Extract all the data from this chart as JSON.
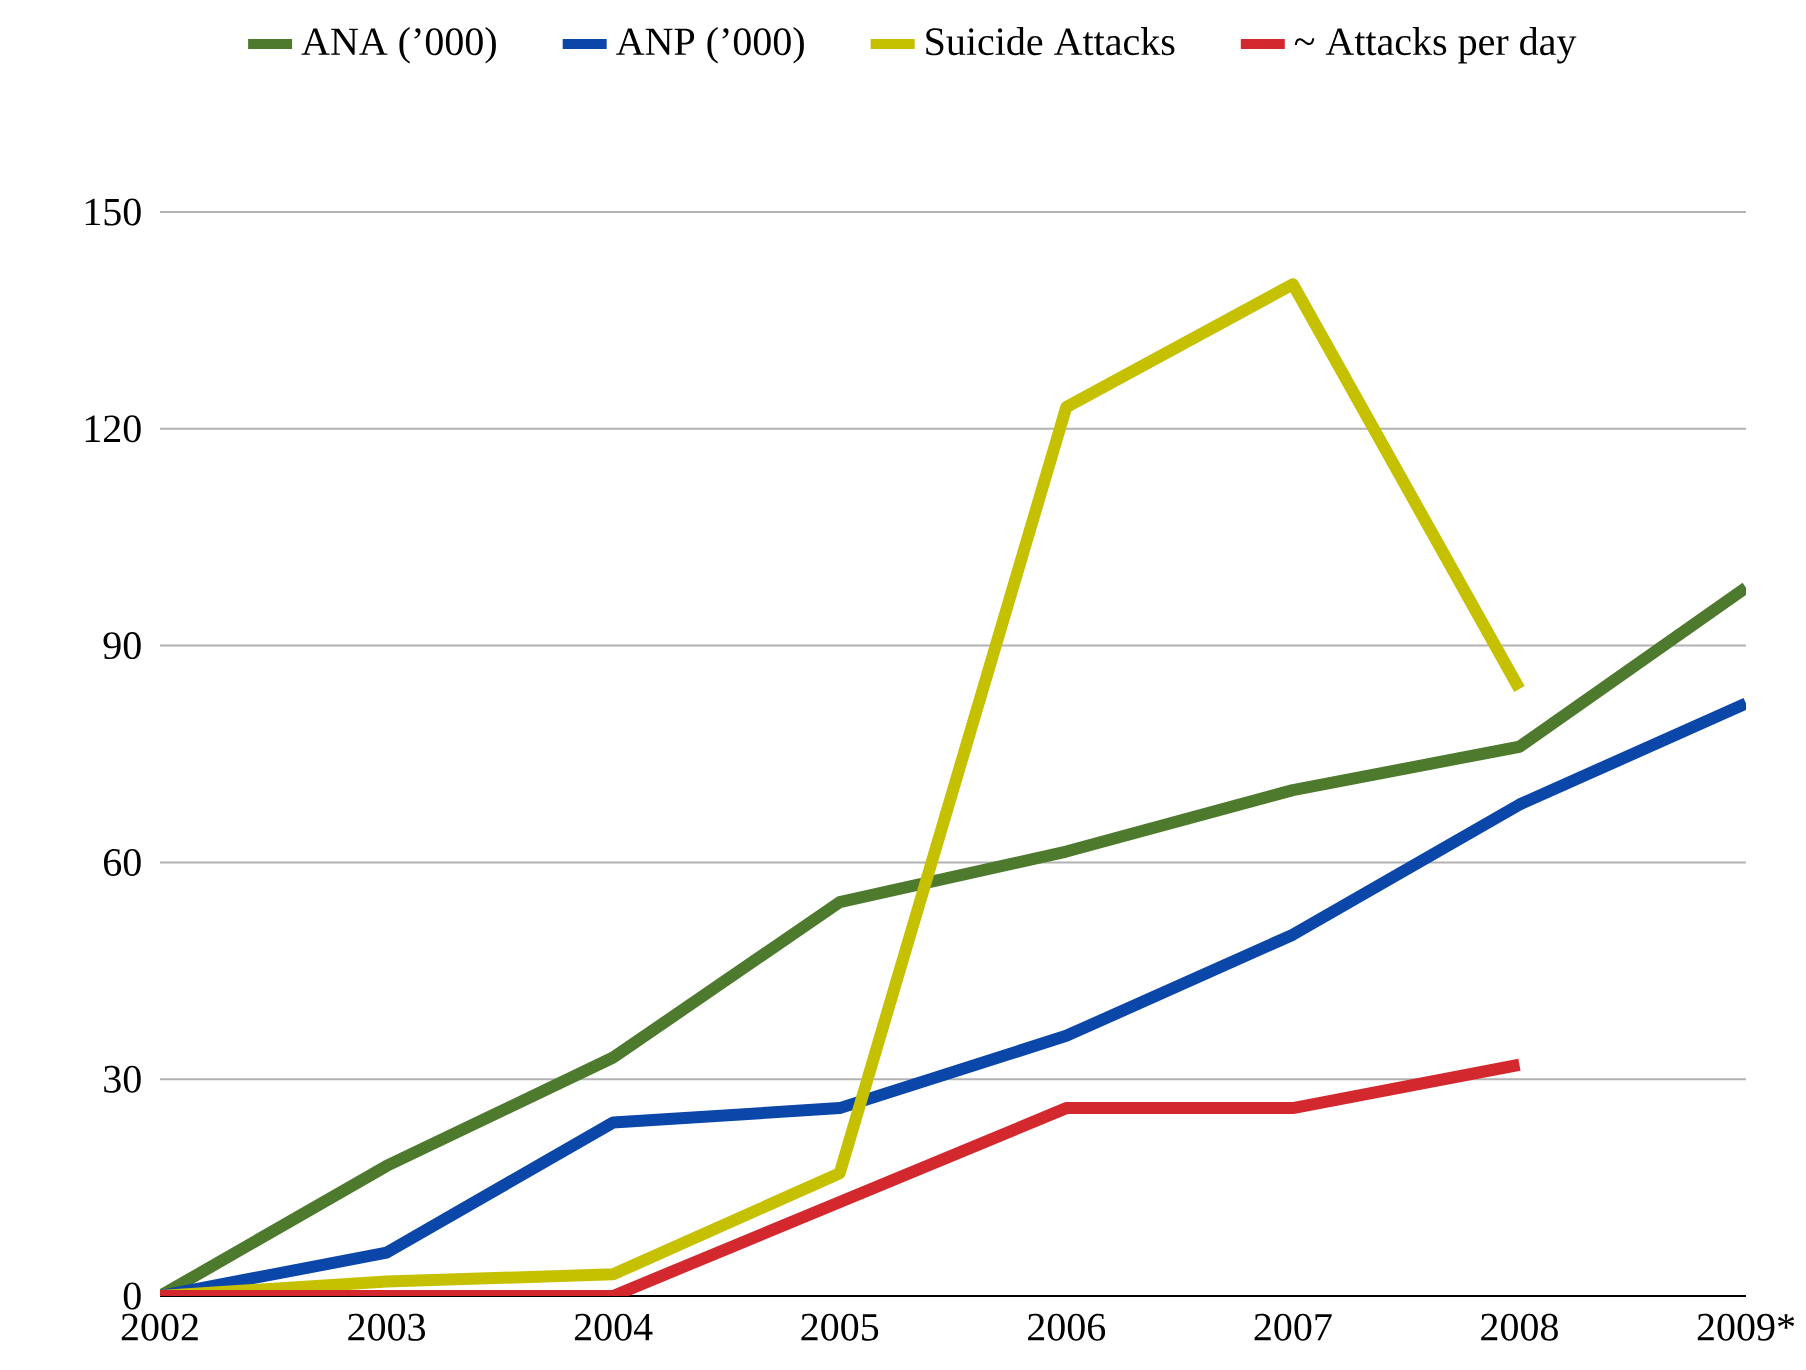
{
  "chart_data": {
    "type": "line",
    "categories": [
      "2002",
      "2003",
      "2004",
      "2005",
      "2006",
      "2007",
      "2008",
      "2009*"
    ],
    "series": [
      {
        "name": "ANA (’000)",
        "color": "#4e7a2e",
        "values": [
          0,
          18,
          33,
          54.5,
          61.5,
          70,
          76,
          98
        ]
      },
      {
        "name": "ANP (’000)",
        "color": "#0a47a8",
        "values": [
          0,
          6,
          24,
          26,
          36,
          50,
          68,
          82
        ]
      },
      {
        "name": "Suicide Attacks",
        "color": "#c5c000",
        "values": [
          0,
          2,
          3,
          17,
          123,
          140,
          84,
          null
        ]
      },
      {
        "name": "~ Attacks per day",
        "color": "#d2282e",
        "values": [
          0,
          0,
          0,
          13,
          26,
          26,
          32,
          null
        ]
      }
    ],
    "ylim": [
      0,
      150
    ],
    "yticks": [
      0,
      30,
      60,
      90,
      120,
      150
    ],
    "grid": "y",
    "legend": "top",
    "marker": "none",
    "line_style": "solid"
  }
}
